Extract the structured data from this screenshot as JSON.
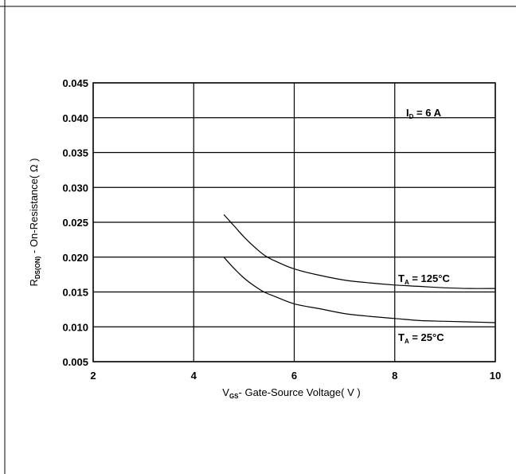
{
  "chart_data": {
    "type": "line",
    "xlabel": {
      "main": "V",
      "sub": "GS",
      "rest": "- Gate-Source Voltage( V )"
    },
    "ylabel": {
      "main": "R",
      "sub": "DS(ON)",
      "rest": " - On-Resistance( Ω )"
    },
    "xlim": [
      2,
      10
    ],
    "ylim": [
      0.005,
      0.045
    ],
    "x_ticks": [
      "2",
      "4",
      "6",
      "8",
      "10"
    ],
    "y_ticks": [
      "0.005",
      "0.010",
      "0.015",
      "0.020",
      "0.025",
      "0.030",
      "0.035",
      "0.040",
      "0.045"
    ],
    "grid": true,
    "annotations": {
      "condition": {
        "main": "I",
        "sub": "D",
        "rest": " = 6 A"
      }
    },
    "series": [
      {
        "name": {
          "main": "T",
          "sub": "A",
          "rest": " = 125°C"
        },
        "x": [
          4.6,
          4.8,
          5.0,
          5.2,
          5.4,
          5.6,
          6.0,
          6.5,
          7.0,
          7.5,
          8.0,
          8.5,
          9.0,
          9.5,
          10.0
        ],
        "y": [
          0.0261,
          0.0245,
          0.0229,
          0.0215,
          0.0203,
          0.0195,
          0.0183,
          0.0174,
          0.0167,
          0.0163,
          0.016,
          0.0158,
          0.0156,
          0.0155,
          0.0155
        ]
      },
      {
        "name": {
          "main": "T",
          "sub": "A",
          "rest": " = 25°C"
        },
        "x": [
          4.6,
          4.8,
          5.0,
          5.2,
          5.4,
          5.6,
          6.0,
          6.5,
          7.0,
          7.5,
          8.0,
          8.5,
          9.0,
          9.5,
          10.0
        ],
        "y": [
          0.02,
          0.0184,
          0.017,
          0.0159,
          0.015,
          0.0144,
          0.0133,
          0.0126,
          0.0119,
          0.0115,
          0.0112,
          0.0109,
          0.0108,
          0.0107,
          0.0106
        ]
      }
    ]
  }
}
